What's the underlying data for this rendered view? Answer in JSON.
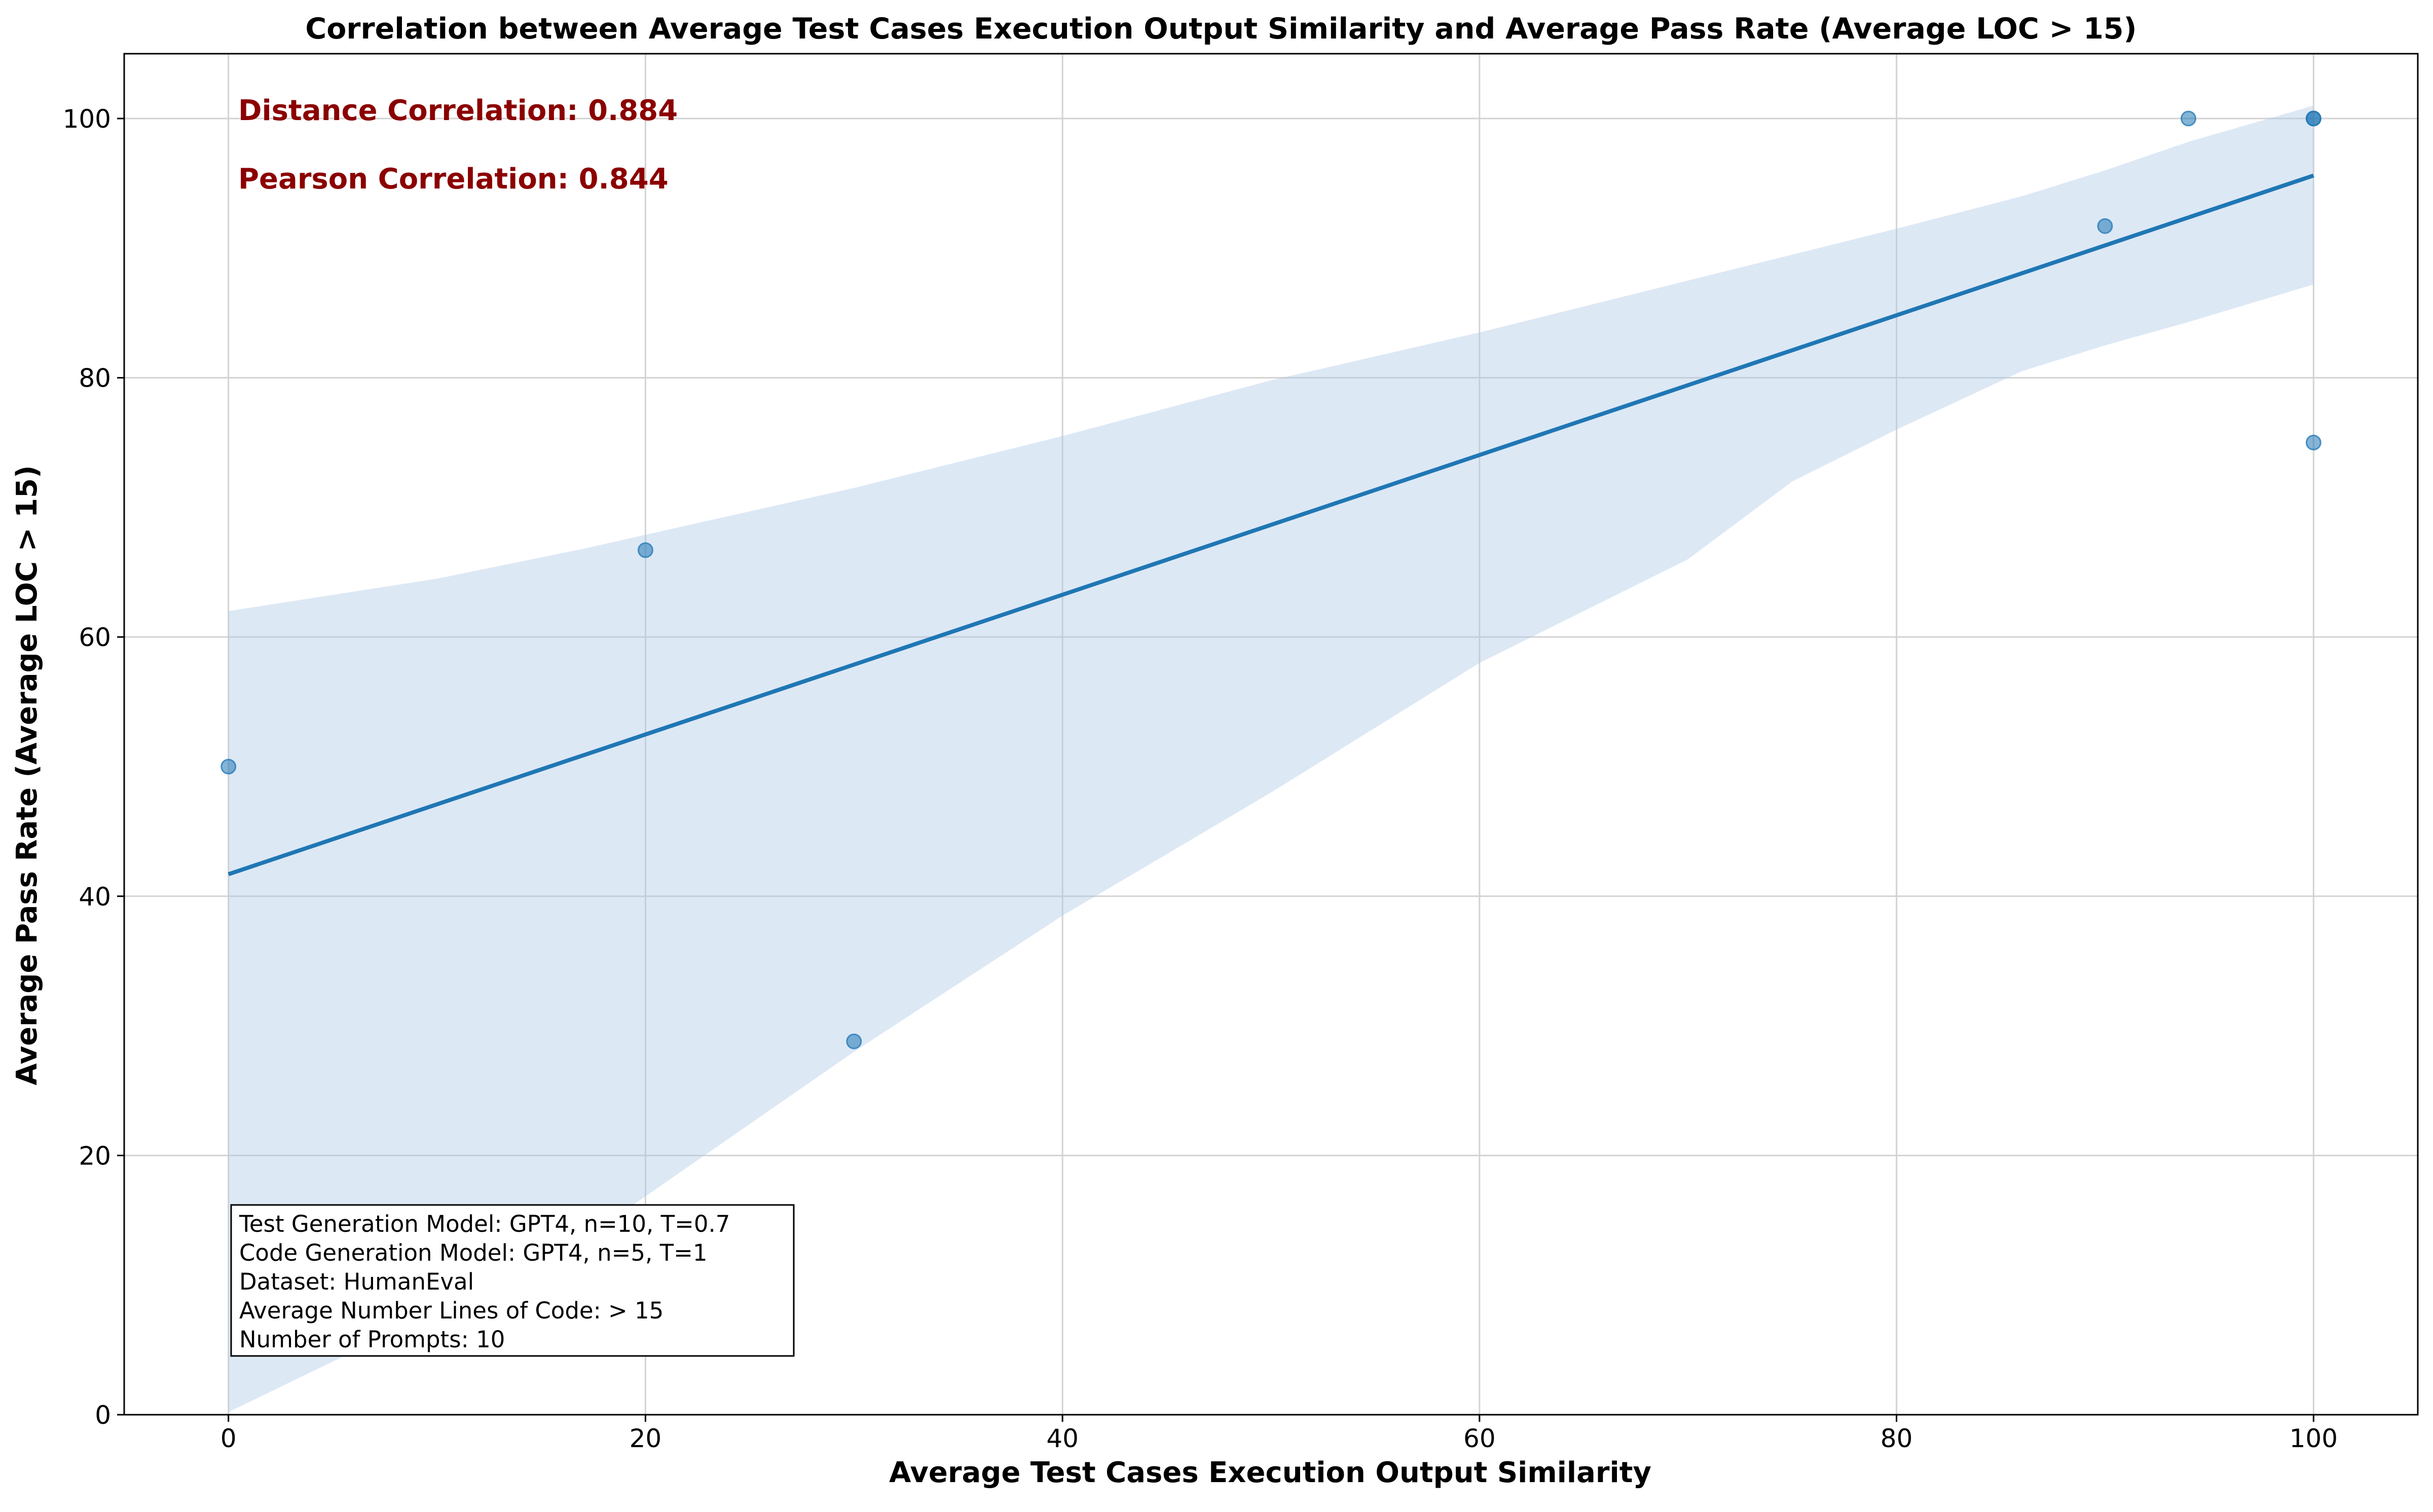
{
  "chart_data": {
    "type": "scatter",
    "title": "Correlation between Average Test Cases Execution Output Similarity and Average Pass Rate (Average LOC > 15)",
    "xlabel": "Average Test Cases Execution Output Similarity",
    "ylabel": "Average Pass Rate (Average LOC > 15)",
    "xlim": [
      -5,
      105
    ],
    "ylim": [
      0,
      105
    ],
    "xticks": [
      0,
      20,
      40,
      60,
      80,
      100
    ],
    "yticks": [
      0,
      20,
      40,
      60,
      80,
      100
    ],
    "grid": true,
    "points": {
      "x": [
        0,
        20,
        30,
        90,
        94,
        100,
        100,
        100
      ],
      "y": [
        50,
        66.7,
        28.8,
        91.7,
        100,
        100,
        100,
        75
      ]
    },
    "regression_line": {
      "x": [
        0,
        100
      ],
      "y": [
        41.7,
        95.6
      ]
    },
    "confidence_band": {
      "x": [
        0,
        10,
        17,
        30,
        40,
        50,
        60,
        70,
        75,
        80,
        86,
        90,
        94,
        100
      ],
      "upper": [
        62,
        64.5,
        66.8,
        71.5,
        75.5,
        79.8,
        83.5,
        87.5,
        89.5,
        91.5,
        94,
        96,
        98.2,
        101
      ],
      "lower": [
        0.2,
        8,
        13.5,
        28,
        38.5,
        48,
        58,
        66,
        72,
        76,
        80.5,
        82.5,
        84.3,
        87.2
      ]
    },
    "colors": {
      "points": "#1f77b4",
      "line": "#1f77b4",
      "band": "#aec7e8",
      "grid": "#d3d3d3",
      "annotation": "#8b0000"
    },
    "annotations": {
      "distance_correlation": "Distance Correlation: 0.884",
      "pearson_correlation": "Pearson Correlation: 0.844"
    },
    "info_box": [
      "Test Generation Model: GPT4, n=10, T=0.7",
      "Code Generation Model: GPT4, n=5, T=1",
      "Dataset: HumanEval",
      "Average Number Lines of Code:  > 15",
      "Number of Prompts: 10"
    ]
  }
}
